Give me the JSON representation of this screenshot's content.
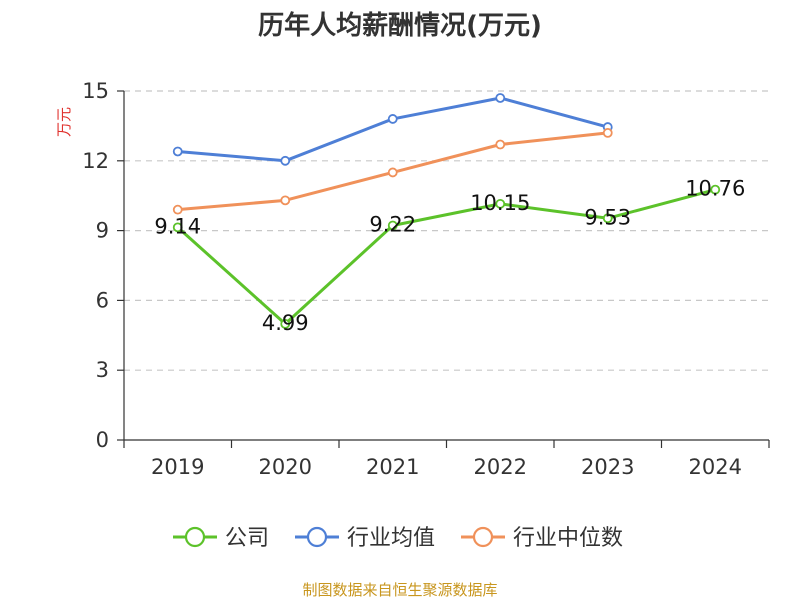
{
  "chart_data": {
    "type": "line",
    "title": "历年人均薪酬情况(万元)",
    "ylabel": "万元",
    "xlabel": "",
    "categories": [
      "2019",
      "2020",
      "2021",
      "2022",
      "2023",
      "2024"
    ],
    "ylim": [
      0,
      15
    ],
    "yticks": [
      0,
      3,
      6,
      9,
      12,
      15
    ],
    "grid": "horizontal-dashed",
    "legend_position": "bottom",
    "series": [
      {
        "name": "公司",
        "color": "#5cc22a",
        "values": [
          9.14,
          4.99,
          9.22,
          10.15,
          9.53,
          10.76
        ],
        "labels": [
          "9.14",
          "4.99",
          "9.22",
          "10.15",
          "9.53",
          "10.76"
        ]
      },
      {
        "name": "行业均值",
        "color": "#4e7fd6",
        "values": [
          12.4,
          12.0,
          13.8,
          14.7,
          13.45,
          null
        ]
      },
      {
        "name": "行业中位数",
        "color": "#f0915a",
        "values": [
          9.9,
          10.3,
          11.5,
          12.7,
          13.2,
          null
        ]
      }
    ]
  },
  "footer": {
    "source": "制图数据来自恒生聚源数据库"
  }
}
